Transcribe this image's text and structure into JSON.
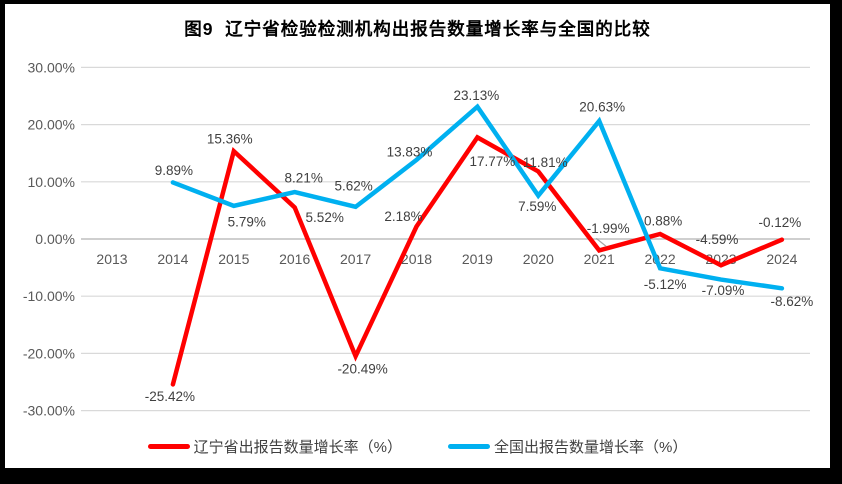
{
  "chart_data": {
    "type": "line",
    "title": "图9  辽宁省检验检测机构出报告数量增长率与全国的比较",
    "xlabel": "",
    "ylabel": "",
    "categories": [
      "2013",
      "2014",
      "2015",
      "2016",
      "2017",
      "2018",
      "2019",
      "2020",
      "2021",
      "2022",
      "2023",
      "2024"
    ],
    "series": [
      {
        "name": "辽宁省出报告数量增长率（%）",
        "color": "#FF0000",
        "values": [
          null,
          -25.42,
          15.36,
          5.52,
          -20.49,
          2.18,
          17.77,
          11.81,
          -1.99,
          0.88,
          -4.59,
          -0.12
        ],
        "label_offsets": [
          null,
          [
            -3,
            12
          ],
          [
            -4,
            -12
          ],
          [
            30,
            10
          ],
          [
            7,
            13
          ],
          [
            -13,
            -10
          ],
          [
            15,
            24
          ],
          [
            7,
            -9
          ],
          [
            9,
            -22
          ],
          [
            3,
            -13
          ],
          [
            -4,
            -26
          ],
          [
            -2,
            -17
          ]
        ]
      },
      {
        "name": "全国出报告数量增长率（%）",
        "color": "#00B0F0",
        "values": [
          null,
          9.89,
          5.79,
          8.21,
          5.62,
          13.83,
          23.13,
          7.59,
          20.63,
          -5.12,
          -7.09,
          -8.62
        ],
        "label_offsets": [
          null,
          [
            1,
            -12
          ],
          [
            13,
            16
          ],
          [
            9,
            -14
          ],
          [
            -2,
            -21
          ],
          [
            -7,
            -8
          ],
          [
            -1,
            -11
          ],
          [
            -1,
            11
          ],
          [
            3,
            -14
          ],
          [
            5,
            16
          ],
          [
            2,
            11
          ],
          [
            10,
            13
          ]
        ]
      }
    ],
    "yticks": [
      "30.00%",
      "20.00%",
      "10.00%",
      "0.00%",
      "-10.00%",
      "-20.00%",
      "-30.00%"
    ],
    "ylim": [
      -30,
      30
    ],
    "ytick_step": 10,
    "grid": true,
    "legend_position": "bottom",
    "leader_lines": [
      {
        "series": 0,
        "index": 8
      }
    ],
    "colors": {
      "grid": "#D9D9D9",
      "zero_axis": "#BFBFBF",
      "axis_text": "#595959",
      "data_label_text": "#404040",
      "leader_line": "#A6A6A6",
      "frame_border": "#000000",
      "background": "#FFFFFF"
    }
  }
}
